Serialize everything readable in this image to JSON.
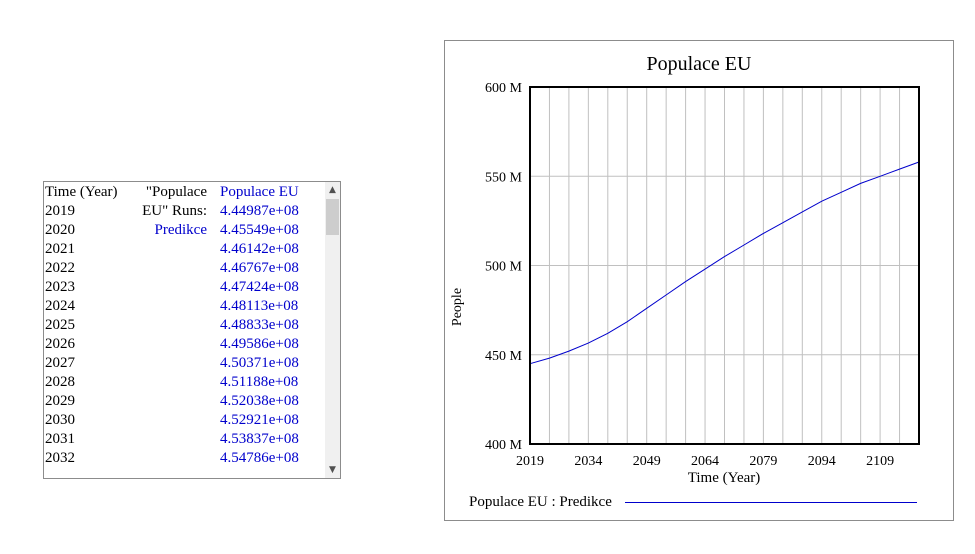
{
  "table": {
    "time_header": "Time (Year)",
    "var_header_line1": "\"Populace",
    "var_header_line2": "EU\"  Runs:",
    "run_name": "Predikce",
    "value_header": "Populace EU",
    "rows": [
      {
        "year": "2019",
        "value": "4.44987e+08"
      },
      {
        "year": "2020",
        "value": "4.45549e+08"
      },
      {
        "year": "2021",
        "value": "4.46142e+08"
      },
      {
        "year": "2022",
        "value": "4.46767e+08"
      },
      {
        "year": "2023",
        "value": "4.47424e+08"
      },
      {
        "year": "2024",
        "value": "4.48113e+08"
      },
      {
        "year": "2025",
        "value": "4.48833e+08"
      },
      {
        "year": "2026",
        "value": "4.49586e+08"
      },
      {
        "year": "2027",
        "value": "4.50371e+08"
      },
      {
        "year": "2028",
        "value": "4.51188e+08"
      },
      {
        "year": "2029",
        "value": "4.52038e+08"
      },
      {
        "year": "2030",
        "value": "4.52921e+08"
      },
      {
        "year": "2031",
        "value": "4.53837e+08"
      },
      {
        "year": "2032",
        "value": "4.54786e+08"
      }
    ],
    "scroll_up_icon": "chevron-up-icon",
    "scroll_down_icon": "chevron-down-icon"
  },
  "chart_data": {
    "type": "line",
    "title": "Populace EU",
    "xlabel": "Time (Year)",
    "ylabel": "People",
    "xlim": [
      2019,
      2119
    ],
    "ylim": [
      400000000,
      600000000
    ],
    "x_ticks": [
      2019,
      2034,
      2049,
      2064,
      2079,
      2094,
      2109
    ],
    "y_ticks": [
      {
        "value": 400000000,
        "label": "400 M"
      },
      {
        "value": 450000000,
        "label": "450 M"
      },
      {
        "value": 500000000,
        "label": "500 M"
      },
      {
        "value": 550000000,
        "label": "550 M"
      },
      {
        "value": 600000000,
        "label": "600 M"
      }
    ],
    "grid": true,
    "legend": "bottom",
    "series": [
      {
        "name": "Populace EU : Predikce",
        "color": "#0000cc",
        "x": [
          2019,
          2024,
          2029,
          2034,
          2039,
          2044,
          2049,
          2054,
          2059,
          2064,
          2069,
          2074,
          2079,
          2084,
          2089,
          2094,
          2099,
          2104,
          2109,
          2114,
          2119
        ],
        "y": [
          444987000,
          448113000,
          452038000,
          456500000,
          462000000,
          468500000,
          476000000,
          483500000,
          491000000,
          498000000,
          505000000,
          511500000,
          518000000,
          524000000,
          530000000,
          536000000,
          541000000,
          546000000,
          550000000,
          554000000,
          558000000
        ]
      }
    ]
  }
}
